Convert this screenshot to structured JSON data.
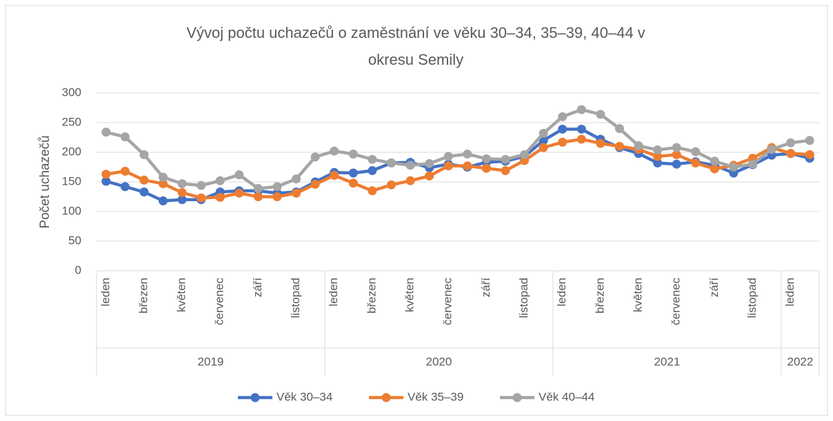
{
  "chart_data": {
    "type": "line",
    "title": "Vývoj počtu uchazečů o zaměstnání ve věku 30–34, 35–39, 40–44 v okresu Semily",
    "y_label": "Počet uchazečů",
    "categories": [
      "leden",
      null,
      "březen",
      null,
      "květen",
      null,
      "červenec",
      null,
      "září",
      null,
      "listopad",
      null,
      "leden",
      null,
      "březen",
      null,
      "květen",
      null,
      "červenec",
      null,
      "září",
      null,
      "listopad",
      null,
      "leden",
      null,
      "březen",
      null,
      "květen",
      null,
      "červenec",
      null,
      "září",
      null,
      "listopad",
      null,
      "leden",
      null
    ],
    "years": [
      "2019",
      "2020",
      "2021",
      "2022"
    ],
    "series": [
      {
        "name": "Věk 30–34",
        "color": "#4472c4",
        "values": [
          151,
          142,
          133,
          118,
          120,
          120,
          133,
          135,
          135,
          131,
          133,
          150,
          166,
          165,
          169,
          182,
          183,
          174,
          180,
          175,
          183,
          185,
          193,
          220,
          239,
          239,
          222,
          208,
          198,
          182,
          180,
          184,
          178,
          165,
          179,
          195,
          198,
          190
        ]
      },
      {
        "name": "Věk 35–39",
        "color": "#ed7d31",
        "values": [
          163,
          168,
          153,
          147,
          132,
          123,
          124,
          131,
          125,
          125,
          131,
          146,
          161,
          148,
          135,
          145,
          152,
          160,
          177,
          177,
          173,
          169,
          186,
          208,
          217,
          222,
          215,
          210,
          205,
          193,
          196,
          182,
          172,
          178,
          190,
          208,
          198,
          196
        ]
      },
      {
        "name": "Věk 40–44",
        "color": "#a5a5a5",
        "values": [
          234,
          226,
          196,
          158,
          147,
          144,
          152,
          162,
          139,
          142,
          155,
          192,
          202,
          197,
          188,
          182,
          178,
          181,
          193,
          197,
          189,
          188,
          196,
          232,
          260,
          272,
          264,
          240,
          211,
          204,
          208,
          201,
          185,
          175,
          180,
          205,
          216,
          220
        ]
      }
    ],
    "ylim": [
      0,
      300
    ],
    "yticks": [
      0,
      50,
      100,
      150,
      200,
      250,
      300
    ],
    "grid": true,
    "legend": "bottom"
  }
}
